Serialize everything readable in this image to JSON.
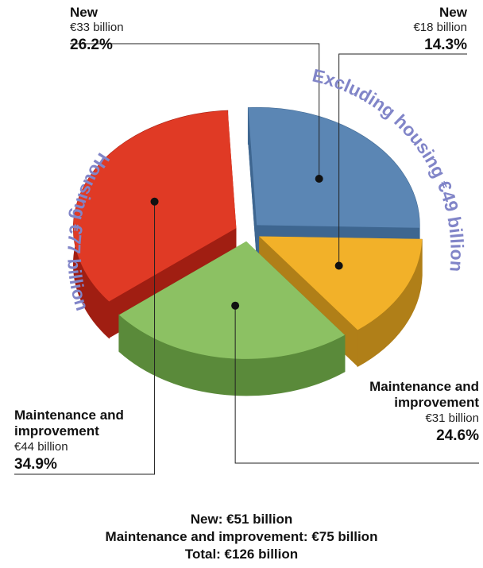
{
  "chart_data": {
    "type": "pie",
    "categories": [
      "New",
      "New",
      "Maintenance and improvement",
      "Maintenance and improvement"
    ],
    "values": [
      26.2,
      14.3,
      24.6,
      34.9
    ],
    "value_labels": [
      "26.2%",
      "14.3%",
      "24.6%",
      "34.9%"
    ],
    "amount_labels": [
      "€33 billion",
      "€18 billion",
      "€31 billion",
      "€44 billion"
    ],
    "colors": [
      "#5b86b4",
      "#f2b129",
      "#8cc163",
      "#e03a25"
    ],
    "side_colors": [
      "#3e6690",
      "#b07f18",
      "#5a8a3a",
      "#a01e12"
    ],
    "group_labels": [
      "Housing €77 billion",
      "Excluding housing €49 billion"
    ],
    "footer": [
      "New: €51 billion",
      "Maintenance and improvement: €75 billion",
      "Total: €126 billion"
    ]
  }
}
